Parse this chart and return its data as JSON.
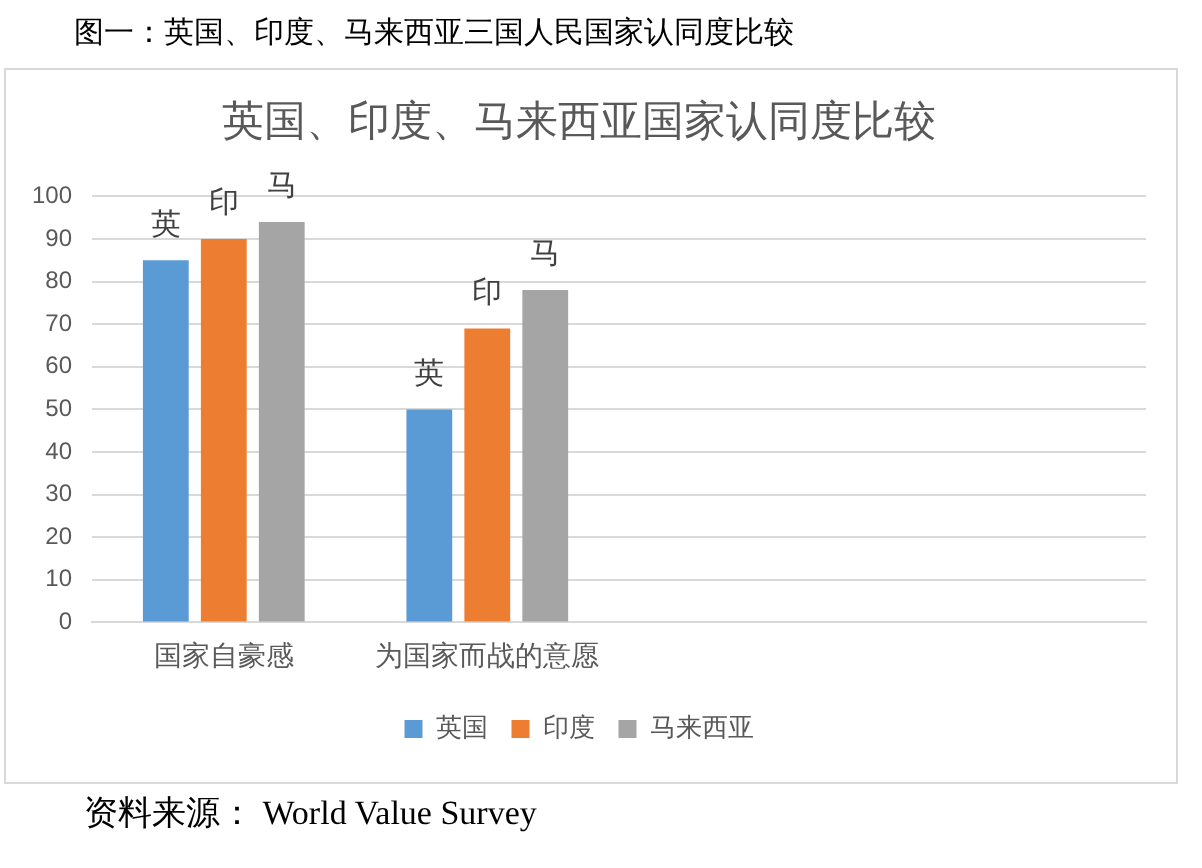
{
  "chart_data": {
    "type": "bar",
    "subtitle": "图一：英国、印度、马来西亚三国人民国家认同度比较",
    "title": "英国、印度、马来西亚国家认同度比较",
    "categories": [
      "国家自豪感",
      "为国家而战的意愿",
      null,
      null
    ],
    "series": [
      {
        "name": "英国",
        "color": "#5b9bd5",
        "values": [
          85,
          50,
          null,
          null
        ],
        "value_labels": [
          "英",
          "英",
          null,
          null
        ]
      },
      {
        "name": "印度",
        "color": "#ed7d31",
        "values": [
          90,
          69,
          null,
          null
        ],
        "value_labels": [
          "印",
          "印",
          null,
          null
        ]
      },
      {
        "name": "马来西亚",
        "color": "#a5a5a5",
        "values": [
          94,
          78,
          null,
          null
        ],
        "value_labels": [
          "马",
          "马",
          null,
          null
        ]
      }
    ],
    "ylim": [
      0,
      100
    ],
    "yticks": [
      0,
      10,
      20,
      30,
      40,
      50,
      60,
      70,
      80,
      90,
      100
    ],
    "grid": "y",
    "legend": "bottom",
    "annotations": [
      "资料来源： World Value Survey"
    ]
  }
}
